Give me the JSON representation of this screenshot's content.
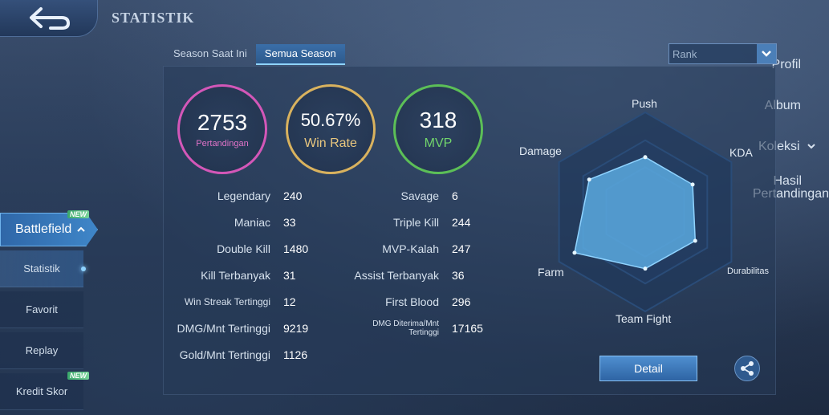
{
  "header": {
    "title": "STATISTIK"
  },
  "sidebar": {
    "profil": "Profil",
    "album": "Album",
    "koleksi": "Koleksi",
    "hasil_line1": "Hasil",
    "hasil_line2": "Pertandingan",
    "battlefield": "Battlefield",
    "new_badge": "NEW",
    "sub_items": [
      "Statistik",
      "Favorit",
      "Replay",
      "Kredit Skor"
    ]
  },
  "tabs": [
    "Season Saat Ini",
    "Semua Season"
  ],
  "rank_select": {
    "value": "Rank"
  },
  "summary": {
    "matches": {
      "value": "2753",
      "label": "Pertandingan"
    },
    "win_rate": {
      "value": "50.67%",
      "label": "Win Rate"
    },
    "mvp": {
      "value": "318",
      "label": "MVP"
    }
  },
  "stats_left": [
    {
      "label": "Legendary",
      "value": "240"
    },
    {
      "label": "Maniac",
      "value": "33"
    },
    {
      "label": "Double Kill",
      "value": "1480"
    },
    {
      "label": "Kill Terbanyak",
      "value": "31"
    },
    {
      "label": "Win Streak Tertinggi",
      "value": "12"
    },
    {
      "label": "DMG/Mnt Tertinggi",
      "value": "9219"
    },
    {
      "label": "Gold/Mnt Tertinggi",
      "value": "1126"
    }
  ],
  "stats_right": [
    {
      "label": "Savage",
      "value": "6"
    },
    {
      "label": "Triple Kill",
      "value": "244"
    },
    {
      "label": "MVP-Kalah",
      "value": "247"
    },
    {
      "label": "Assist Terbanyak",
      "value": "36"
    },
    {
      "label": "First Blood",
      "value": "296"
    },
    {
      "label": "DMG Diterima/Mnt Tertinggi",
      "label_line1": "DMG Diterima/Mnt",
      "label_line2": "Tertinggi",
      "value": "17165"
    }
  ],
  "radar": {
    "axes": [
      "Push",
      "KDA",
      "Durabilitas",
      "Team Fight",
      "Farm",
      "Damage"
    ],
    "values": [
      0.55,
      0.55,
      0.58,
      0.57,
      0.82,
      0.65
    ],
    "fill_color": "#5aa9df",
    "grid_color": "#2a4c78"
  },
  "buttons": {
    "detail": "Detail"
  },
  "icons": {
    "back": "back-arrow-icon",
    "share": "share-icon"
  }
}
